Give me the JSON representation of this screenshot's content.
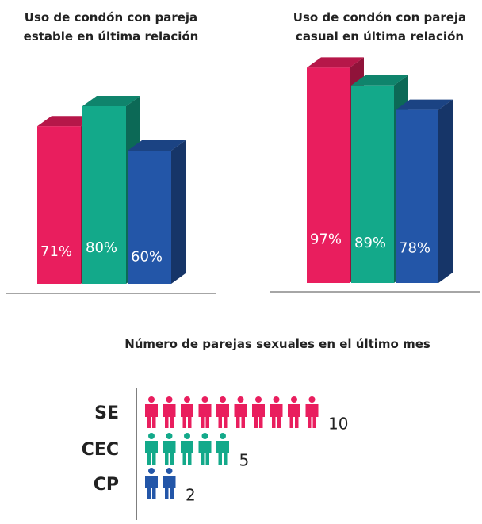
{
  "chart_data": [
    {
      "type": "bar",
      "title": "Uso de condón con pareja estable en última relación",
      "categories": [
        null,
        null,
        null
      ],
      "values": [
        71,
        80,
        60
      ],
      "value_labels": [
        "71%",
        "80%",
        "60%"
      ],
      "colors": [
        "#e91e5e",
        "#13a98a",
        "#2356a8"
      ],
      "ylim": [
        0,
        100
      ]
    },
    {
      "type": "bar",
      "title": "Uso de condón con pareja casual en última relación",
      "categories": [
        null,
        null,
        null
      ],
      "values": [
        97,
        89,
        78
      ],
      "value_labels": [
        "97%",
        "89%",
        "78%"
      ],
      "colors": [
        "#e91e5e",
        "#13a98a",
        "#2356a8"
      ],
      "ylim": [
        0,
        100
      ]
    },
    {
      "type": "pictogram",
      "title": "Número de parejas sexuales en el último mes",
      "categories": [
        "SE",
        "CEC",
        "CP"
      ],
      "values": [
        10,
        5,
        2
      ],
      "colors": [
        "#e91e5e",
        "#13a98a",
        "#2356a8"
      ]
    }
  ]
}
